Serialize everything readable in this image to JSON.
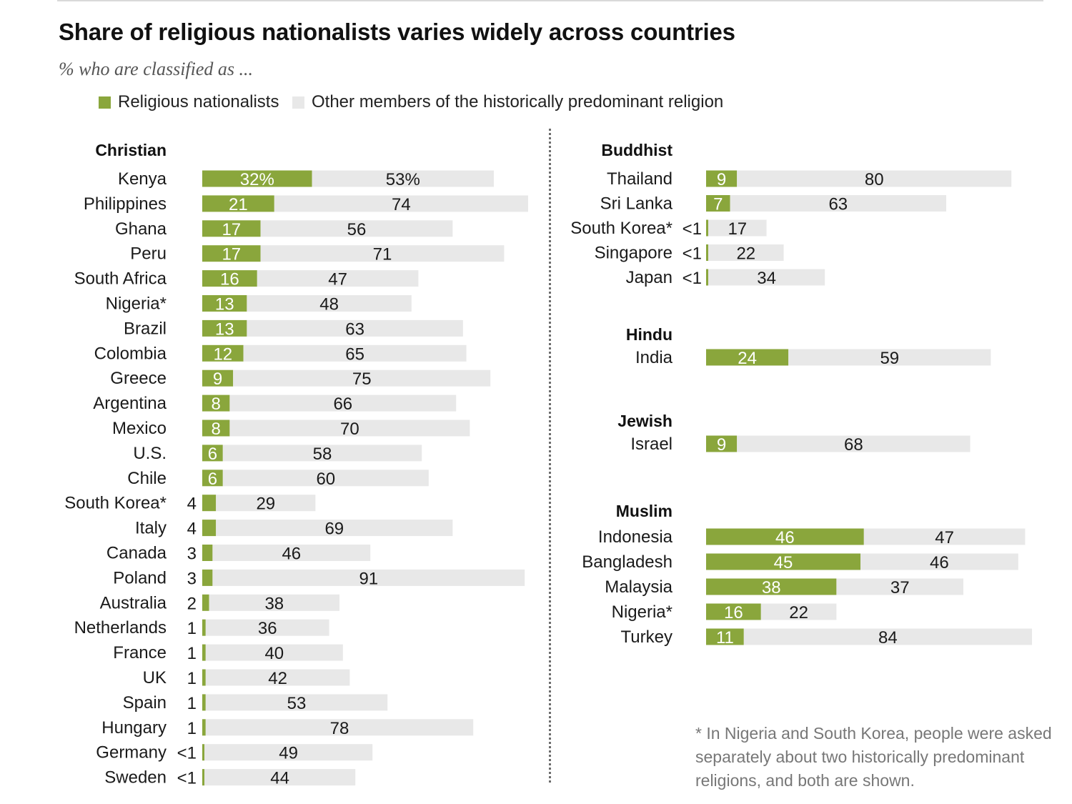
{
  "title": "Share of religious nationalists varies widely across countries",
  "subtitle": "% who are classified as ...",
  "legend": {
    "nationalists": "Religious nationalists",
    "others": "Other members of the historically predominant religion"
  },
  "colors": {
    "nationalists": "#8aa63c",
    "others": "#e8e8e8",
    "text": "#1a1a1a"
  },
  "footnote": "* In Nigeria and South Korea, people were asked separately about two historically predominant religions, and both are shown.",
  "chart_data": {
    "type": "bar",
    "stacked": true,
    "orientation": "horizontal",
    "series_names": [
      "Religious nationalists",
      "Other members of the historically predominant religion"
    ],
    "groups": [
      {
        "name": "Christian",
        "rows": [
          {
            "country": "Kenya",
            "nationalists": 32,
            "others": 53,
            "n_label": "32%",
            "o_label": "53%"
          },
          {
            "country": "Philippines",
            "nationalists": 21,
            "others": 74,
            "n_label": "21",
            "o_label": "74"
          },
          {
            "country": "Ghana",
            "nationalists": 17,
            "others": 56,
            "n_label": "17",
            "o_label": "56"
          },
          {
            "country": "Peru",
            "nationalists": 17,
            "others": 71,
            "n_label": "17",
            "o_label": "71"
          },
          {
            "country": "South Africa",
            "nationalists": 16,
            "others": 47,
            "n_label": "16",
            "o_label": "47"
          },
          {
            "country": "Nigeria*",
            "nationalists": 13,
            "others": 48,
            "n_label": "13",
            "o_label": "48"
          },
          {
            "country": "Brazil",
            "nationalists": 13,
            "others": 63,
            "n_label": "13",
            "o_label": "63"
          },
          {
            "country": "Colombia",
            "nationalists": 12,
            "others": 65,
            "n_label": "12",
            "o_label": "65"
          },
          {
            "country": "Greece",
            "nationalists": 9,
            "others": 75,
            "n_label": "9",
            "o_label": "75"
          },
          {
            "country": "Argentina",
            "nationalists": 8,
            "others": 66,
            "n_label": "8",
            "o_label": "66"
          },
          {
            "country": "Mexico",
            "nationalists": 8,
            "others": 70,
            "n_label": "8",
            "o_label": "70"
          },
          {
            "country": "U.S.",
            "nationalists": 6,
            "others": 58,
            "n_label": "6",
            "o_label": "58"
          },
          {
            "country": "Chile",
            "nationalists": 6,
            "others": 60,
            "n_label": "6",
            "o_label": "60"
          },
          {
            "country": "South Korea*",
            "nationalists": 4,
            "others": 29,
            "n_label": "4",
            "o_label": "29"
          },
          {
            "country": "Italy",
            "nationalists": 4,
            "others": 69,
            "n_label": "4",
            "o_label": "69"
          },
          {
            "country": "Canada",
            "nationalists": 3,
            "others": 46,
            "n_label": "3",
            "o_label": "46"
          },
          {
            "country": "Poland",
            "nationalists": 3,
            "others": 91,
            "n_label": "3",
            "o_label": "91"
          },
          {
            "country": "Australia",
            "nationalists": 2,
            "others": 38,
            "n_label": "2",
            "o_label": "38"
          },
          {
            "country": "Netherlands",
            "nationalists": 1,
            "others": 36,
            "n_label": "1",
            "o_label": "36"
          },
          {
            "country": "France",
            "nationalists": 1,
            "others": 40,
            "n_label": "1",
            "o_label": "40"
          },
          {
            "country": "UK",
            "nationalists": 1,
            "others": 42,
            "n_label": "1",
            "o_label": "42"
          },
          {
            "country": "Spain",
            "nationalists": 1,
            "others": 53,
            "n_label": "1",
            "o_label": "53"
          },
          {
            "country": "Hungary",
            "nationalists": 1,
            "others": 78,
            "n_label": "1",
            "o_label": "78"
          },
          {
            "country": "Germany",
            "nationalists": 0.5,
            "others": 49,
            "n_label": "<1",
            "o_label": "49"
          },
          {
            "country": "Sweden",
            "nationalists": 0.5,
            "others": 44,
            "n_label": "<1",
            "o_label": "44"
          }
        ]
      },
      {
        "name": "Buddhist",
        "rows": [
          {
            "country": "Thailand",
            "nationalists": 9,
            "others": 80,
            "n_label": "9",
            "o_label": "80"
          },
          {
            "country": "Sri Lanka",
            "nationalists": 7,
            "others": 63,
            "n_label": "7",
            "o_label": "63"
          },
          {
            "country": "South Korea*",
            "nationalists": 0.5,
            "others": 17,
            "n_label": "<1",
            "o_label": "17"
          },
          {
            "country": "Singapore",
            "nationalists": 0.5,
            "others": 22,
            "n_label": "<1",
            "o_label": "22"
          },
          {
            "country": "Japan",
            "nationalists": 0.5,
            "others": 34,
            "n_label": "<1",
            "o_label": "34"
          }
        ]
      },
      {
        "name": "Hindu",
        "rows": [
          {
            "country": "India",
            "nationalists": 24,
            "others": 59,
            "n_label": "24",
            "o_label": "59"
          }
        ]
      },
      {
        "name": "Jewish",
        "rows": [
          {
            "country": "Israel",
            "nationalists": 9,
            "others": 68,
            "n_label": "9",
            "o_label": "68"
          }
        ]
      },
      {
        "name": "Muslim",
        "rows": [
          {
            "country": "Indonesia",
            "nationalists": 46,
            "others": 47,
            "n_label": "46",
            "o_label": "47"
          },
          {
            "country": "Bangladesh",
            "nationalists": 45,
            "others": 46,
            "n_label": "45",
            "o_label": "46"
          },
          {
            "country": "Malaysia",
            "nationalists": 38,
            "others": 37,
            "n_label": "38",
            "o_label": "37"
          },
          {
            "country": "Nigeria*",
            "nationalists": 16,
            "others": 22,
            "n_label": "16",
            "o_label": "22"
          },
          {
            "country": "Turkey",
            "nationalists": 11,
            "others": 84,
            "n_label": "11",
            "o_label": "84"
          }
        ]
      }
    ]
  }
}
